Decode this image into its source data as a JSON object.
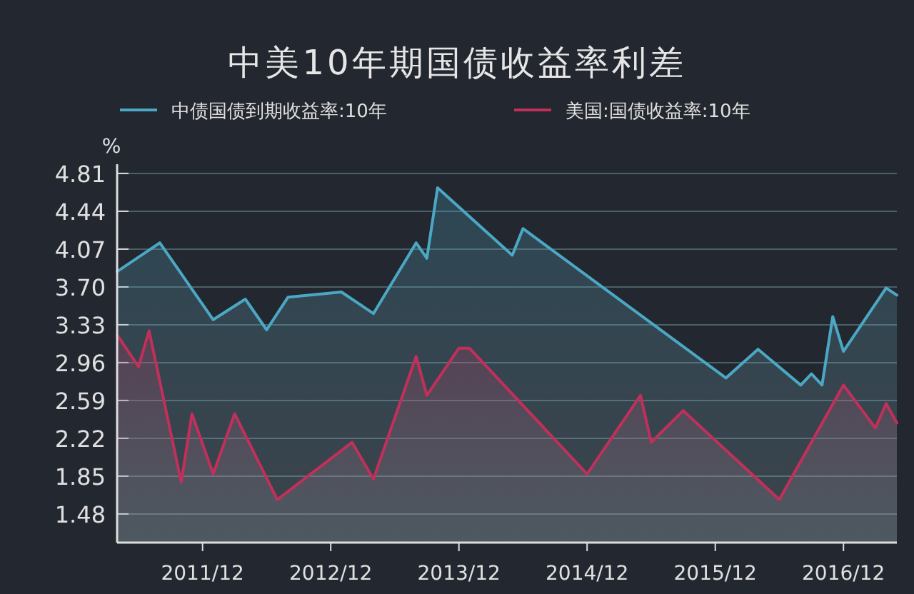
{
  "chart_data": {
    "type": "area",
    "title": "中美10年期国债收益率利差",
    "ylabel": "%",
    "xlim": [
      "2011-04",
      "2017-05"
    ],
    "xticks": [
      {
        "value": "2011-12",
        "label": "2011/12"
      },
      {
        "value": "2012-12",
        "label": "2012/12"
      },
      {
        "value": "2013-12",
        "label": "2013/12"
      },
      {
        "value": "2014-12",
        "label": "2014/12"
      },
      {
        "value": "2015-12",
        "label": "2015/12"
      },
      {
        "value": "2016-12",
        "label": "2016/12"
      }
    ],
    "ylim": [
      1.2,
      4.9
    ],
    "yticks": [
      1.48,
      1.85,
      2.22,
      2.59,
      2.96,
      3.33,
      {
        "value": 3.7,
        "label": "3.70"
      },
      4.07,
      4.44,
      4.81
    ],
    "grid": "y",
    "legend": "top",
    "series": [
      {
        "name": "中债国债到期收益率:10年",
        "color": "#4aa8c4",
        "x": [
          "2011-04",
          "2011-08",
          "2012-01",
          "2012-04",
          "2012-06",
          "2012-08",
          "2013-01",
          "2013-04",
          "2013-08",
          "2013-09",
          "2013-10",
          "2014-05",
          "2014-06",
          "2016-01",
          "2016-04",
          "2016-08",
          "2016-09",
          "2016-10",
          "2016-11",
          "2016-12",
          "2017-04",
          "2017-05"
        ],
        "values": [
          3.85,
          4.13,
          3.38,
          3.58,
          3.28,
          3.6,
          3.65,
          3.44,
          4.13,
          3.98,
          4.67,
          4.01,
          4.27,
          2.81,
          3.09,
          2.74,
          2.85,
          2.74,
          3.41,
          3.07,
          3.69,
          3.62
        ]
      },
      {
        "name": "美国:国债收益率:10年",
        "color": "#c0305a",
        "x": [
          "2011-04",
          "2011-06",
          "2011-07",
          "2011-10",
          "2011-11",
          "2012-01",
          "2012-03",
          "2012-07",
          "2013-02",
          "2013-04",
          "2013-08",
          "2013-09",
          "2013-12",
          "2014-01",
          "2014-12",
          "2015-05",
          "2015-06",
          "2015-09",
          "2016-06",
          "2016-12",
          "2017-03",
          "2017-04",
          "2017-05"
        ],
        "values": [
          3.23,
          2.92,
          3.27,
          1.79,
          2.46,
          1.87,
          2.46,
          1.62,
          2.18,
          1.82,
          3.02,
          2.64,
          3.1,
          3.1,
          1.87,
          2.64,
          2.18,
          2.49,
          1.62,
          2.74,
          2.32,
          2.56,
          2.37
        ]
      }
    ]
  }
}
